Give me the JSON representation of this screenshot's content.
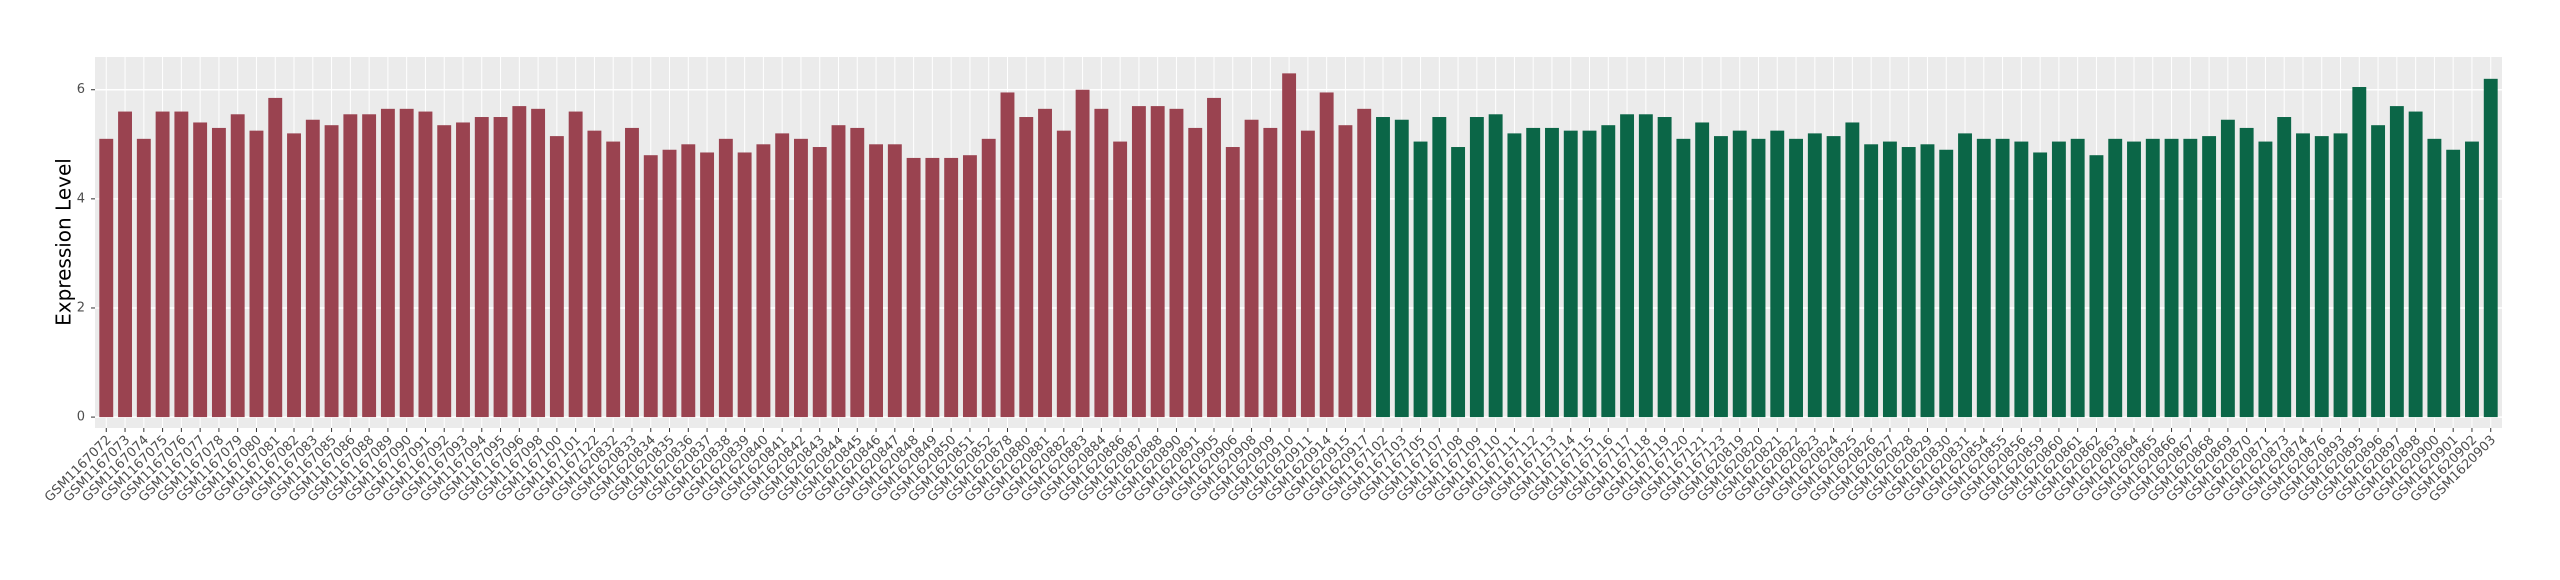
{
  "chart_data": {
    "type": "bar",
    "y_label": "Expression Level",
    "categories": [
      "GSM1167072",
      "GSM1167073",
      "GSM1167074",
      "GSM1167075",
      "GSM1167076",
      "GSM1167077",
      "GSM1167078",
      "GSM1167079",
      "GSM1167080",
      "GSM1167081",
      "GSM1167082",
      "GSM1167083",
      "GSM1167085",
      "GSM1167086",
      "GSM1167088",
      "GSM1167089",
      "GSM1167090",
      "GSM1167091",
      "GSM1167092",
      "GSM1167093",
      "GSM1167094",
      "GSM1167095",
      "GSM1167096",
      "GSM1167098",
      "GSM1167100",
      "GSM1167101",
      "GSM1167122",
      "GSM1620832",
      "GSM1620833",
      "GSM1620834",
      "GSM1620835",
      "GSM1620836",
      "GSM1620837",
      "GSM1620838",
      "GSM1620839",
      "GSM1620840",
      "GSM1620841",
      "GSM1620842",
      "GSM1620843",
      "GSM1620844",
      "GSM1620845",
      "GSM1620846",
      "GSM1620847",
      "GSM1620848",
      "GSM1620849",
      "GSM1620850",
      "GSM1620851",
      "GSM1620852",
      "GSM1620878",
      "GSM1620880",
      "GSM1620881",
      "GSM1620882",
      "GSM1620883",
      "GSM1620884",
      "GSM1620886",
      "GSM1620887",
      "GSM1620888",
      "GSM1620890",
      "GSM1620891",
      "GSM1620905",
      "GSM1620906",
      "GSM1620908",
      "GSM1620909",
      "GSM1620910",
      "GSM1620911",
      "GSM1620914",
      "GSM1620915",
      "GSM1620917",
      "GSM1167102",
      "GSM1167103",
      "GSM1167105",
      "GSM1167107",
      "GSM1167108",
      "GSM1167109",
      "GSM1167110",
      "GSM1167111",
      "GSM1167112",
      "GSM1167113",
      "GSM1167114",
      "GSM1167115",
      "GSM1167116",
      "GSM1167117",
      "GSM1167118",
      "GSM1167119",
      "GSM1167120",
      "GSM1167121",
      "GSM1167123",
      "GSM1620819",
      "GSM1620820",
      "GSM1620821",
      "GSM1620822",
      "GSM1620823",
      "GSM1620824",
      "GSM1620825",
      "GSM1620826",
      "GSM1620827",
      "GSM1620828",
      "GSM1620829",
      "GSM1620830",
      "GSM1620831",
      "GSM1620854",
      "GSM1620855",
      "GSM1620856",
      "GSM1620859",
      "GSM1620860",
      "GSM1620861",
      "GSM1620862",
      "GSM1620863",
      "GSM1620864",
      "GSM1620865",
      "GSM1620866",
      "GSM1620867",
      "GSM1620868",
      "GSM1620869",
      "GSM1620870",
      "GSM1620871",
      "GSM1620873",
      "GSM1620874",
      "GSM1620876",
      "GSM1620893",
      "GSM1620895",
      "GSM1620896",
      "GSM1620897",
      "GSM1620898",
      "GSM1620900",
      "GSM1620901",
      "GSM1620902",
      "GSM1620903"
    ],
    "values": [
      5.1,
      5.6,
      5.1,
      5.6,
      5.6,
      5.4,
      5.3,
      5.55,
      5.25,
      5.85,
      5.2,
      5.45,
      5.35,
      5.55,
      5.55,
      5.65,
      5.65,
      5.6,
      5.35,
      5.4,
      5.5,
      5.5,
      5.7,
      5.65,
      5.15,
      5.6,
      5.25,
      5.05,
      5.3,
      4.8,
      4.9,
      5.0,
      4.85,
      5.1,
      4.85,
      5.0,
      5.2,
      5.1,
      4.95,
      5.35,
      5.3,
      5.0,
      5.0,
      4.75,
      4.75,
      4.75,
      4.8,
      5.1,
      5.95,
      5.5,
      5.65,
      5.25,
      6.0,
      5.65,
      5.05,
      5.7,
      5.7,
      5.65,
      5.3,
      5.85,
      4.95,
      5.45,
      5.3,
      6.3,
      5.25,
      5.95,
      5.35,
      5.65,
      5.5,
      5.45,
      5.05,
      5.5,
      4.95,
      5.5,
      5.55,
      5.2,
      5.3,
      5.3,
      5.25,
      5.25,
      5.35,
      5.55,
      5.55,
      5.5,
      5.1,
      5.4,
      5.15,
      5.25,
      5.1,
      5.25,
      5.1,
      5.2,
      5.15,
      5.4,
      5.0,
      5.05,
      4.95,
      5.0,
      4.9,
      5.2,
      5.1,
      5.1,
      5.05,
      4.85,
      5.05,
      5.1,
      4.8,
      5.1,
      5.05,
      5.1,
      5.1,
      5.1,
      5.15,
      5.45,
      5.3,
      5.05,
      5.5,
      5.2,
      5.15,
      5.2,
      6.05,
      5.35,
      5.7,
      5.6,
      5.1,
      4.9,
      5.05,
      6.2
    ],
    "colors": [
      "#9a4350",
      "#9a4350",
      "#9a4350",
      "#9a4350",
      "#9a4350",
      "#9a4350",
      "#9a4350",
      "#9a4350",
      "#9a4350",
      "#9a4350",
      "#9a4350",
      "#9a4350",
      "#9a4350",
      "#9a4350",
      "#9a4350",
      "#9a4350",
      "#9a4350",
      "#9a4350",
      "#9a4350",
      "#9a4350",
      "#9a4350",
      "#9a4350",
      "#9a4350",
      "#9a4350",
      "#9a4350",
      "#9a4350",
      "#9a4350",
      "#9a4350",
      "#9a4350",
      "#9a4350",
      "#9a4350",
      "#9a4350",
      "#9a4350",
      "#9a4350",
      "#9a4350",
      "#9a4350",
      "#9a4350",
      "#9a4350",
      "#9a4350",
      "#9a4350",
      "#9a4350",
      "#9a4350",
      "#9a4350",
      "#9a4350",
      "#9a4350",
      "#9a4350",
      "#9a4350",
      "#9a4350",
      "#9a4350",
      "#9a4350",
      "#9a4350",
      "#9a4350",
      "#9a4350",
      "#9a4350",
      "#9a4350",
      "#9a4350",
      "#9a4350",
      "#9a4350",
      "#9a4350",
      "#9a4350",
      "#9a4350",
      "#9a4350",
      "#9a4350",
      "#9a4350",
      "#9a4350",
      "#9a4350",
      "#9a4350",
      "#9a4350",
      "#0b6647",
      "#0b6647",
      "#0b6647",
      "#0b6647",
      "#0b6647",
      "#0b6647",
      "#0b6647",
      "#0b6647",
      "#0b6647",
      "#0b6647",
      "#0b6647",
      "#0b6647",
      "#0b6647",
      "#0b6647",
      "#0b6647",
      "#0b6647",
      "#0b6647",
      "#0b6647",
      "#0b6647",
      "#0b6647",
      "#0b6647",
      "#0b6647",
      "#0b6647",
      "#0b6647",
      "#0b6647",
      "#0b6647",
      "#0b6647",
      "#0b6647",
      "#0b6647",
      "#0b6647",
      "#0b6647",
      "#0b6647",
      "#0b6647",
      "#0b6647",
      "#0b6647",
      "#0b6647",
      "#0b6647",
      "#0b6647",
      "#0b6647",
      "#0b6647",
      "#0b6647",
      "#0b6647",
      "#0b6647",
      "#0b6647",
      "#0b6647",
      "#0b6647",
      "#0b6647",
      "#0b6647",
      "#0b6647",
      "#0b6647",
      "#0b6647",
      "#0b6647",
      "#0b6647",
      "#0b6647",
      "#0b6647",
      "#0b6647",
      "#0b6647",
      "#0b6647",
      "#0b6647",
      "#0b6647"
    ],
    "ylim": [
      -0.2,
      6.6
    ],
    "yticks": [
      0,
      2,
      4,
      6
    ],
    "grid": true
  }
}
